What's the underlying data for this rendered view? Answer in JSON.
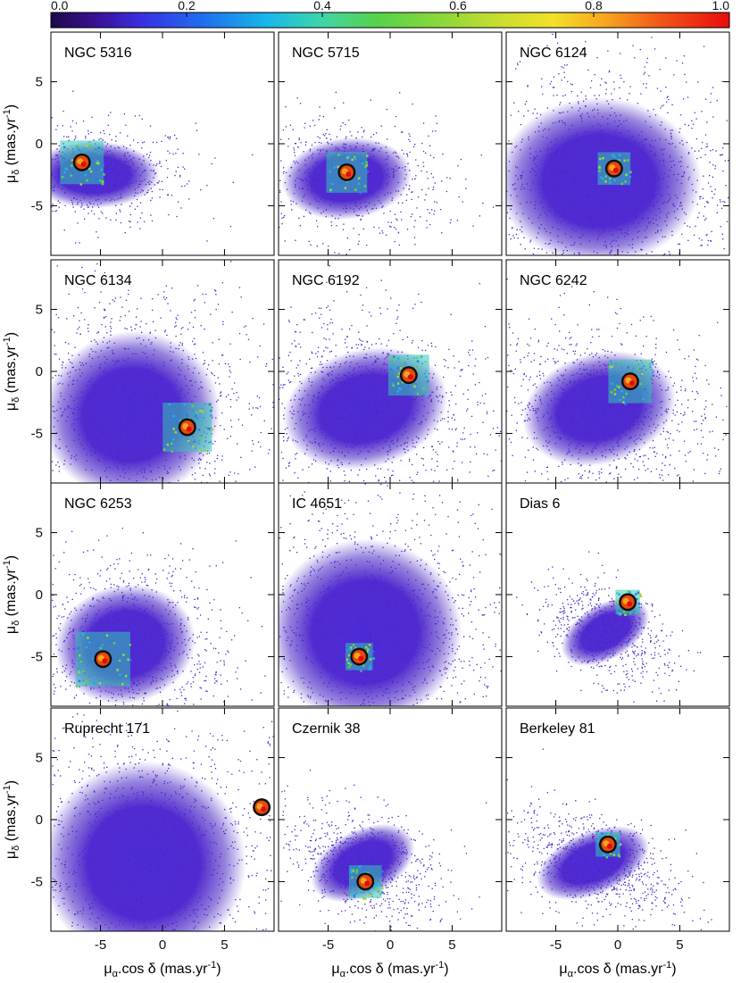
{
  "chart_data": {
    "type": "scatter",
    "description_units": "proper motion density plots",
    "colorbar": {
      "ticks": [
        "0.0",
        "0.2",
        "0.4",
        "0.6",
        "0.8",
        "1.0"
      ],
      "range": [
        0,
        1
      ],
      "colormap": "rainbow"
    },
    "xlabel": "μα.cos δ (mas.yr-1)",
    "ylabel": "μδ (mas.yr-1)",
    "xlabel_parts": {
      "sym": "μ",
      "sub": "α",
      "rest": ".cos δ (mas.yr",
      "sup": "-1",
      "close": ")"
    },
    "ylabel_parts": {
      "sym": "μ",
      "sub": "δ",
      "rest": " (mas.yr",
      "sup": "-1",
      "close": ")"
    },
    "xlim": [
      -9,
      9
    ],
    "ylim": [
      -9,
      9
    ],
    "xticks": [
      "-5",
      "0",
      "5"
    ],
    "yticks": [
      "5",
      "0",
      "-5"
    ],
    "panels": [
      {
        "name": "NGC 5316",
        "cluster": [
          -6.5,
          -1.5
        ],
        "field_center": [
          -5.5,
          -2.5
        ],
        "spread": [
          3.5,
          1.8
        ],
        "tilt": 0,
        "density": 1800,
        "box": 1.6
      },
      {
        "name": "NGC 5715",
        "cluster": [
          -3.5,
          -2.3
        ],
        "field_center": [
          -3.5,
          -2.8
        ],
        "spread": [
          3.5,
          2.2
        ],
        "tilt": 0.2,
        "density": 2000,
        "box": 1.5
      },
      {
        "name": "NGC 6124",
        "cluster": [
          -0.3,
          -2.0
        ],
        "field_center": [
          -1.5,
          -3.0
        ],
        "spread": [
          5.5,
          4.5
        ],
        "tilt": 0,
        "density": 4000,
        "box": 1.2
      },
      {
        "name": "NGC 6134",
        "cluster": [
          2.0,
          -4.5
        ],
        "field_center": [
          -2.5,
          -3.5
        ],
        "spread": [
          4.8,
          4.5
        ],
        "tilt": 0.5,
        "density": 3800,
        "box": 1.8
      },
      {
        "name": "NGC 6192",
        "cluster": [
          1.5,
          -0.3
        ],
        "field_center": [
          -2.0,
          -3.0
        ],
        "spread": [
          4.5,
          3.2
        ],
        "tilt": 0.5,
        "density": 3200,
        "box": 1.5
      },
      {
        "name": "NGC 6242",
        "cluster": [
          1.0,
          -0.8
        ],
        "field_center": [
          -1.5,
          -3.0
        ],
        "spread": [
          4.2,
          3.0
        ],
        "tilt": 0.55,
        "density": 3000,
        "box": 1.6
      },
      {
        "name": "NGC 6253",
        "cluster": [
          -4.8,
          -5.2
        ],
        "field_center": [
          -3.0,
          -4.0
        ],
        "spread": [
          3.8,
          3.2
        ],
        "tilt": 0.4,
        "density": 2800,
        "box": 2.0
      },
      {
        "name": "IC 4651",
        "cluster": [
          -2.5,
          -5.0
        ],
        "field_center": [
          -2.0,
          -3.0
        ],
        "spread": [
          5.2,
          5.0
        ],
        "tilt": 0.2,
        "density": 4000,
        "box": 1.0
      },
      {
        "name": "Dias 6",
        "cluster": [
          0.8,
          -0.6
        ],
        "field_center": [
          -1.0,
          -3.0
        ],
        "spread": [
          2.6,
          1.5
        ],
        "tilt": 1.0,
        "density": 1800,
        "box": 0.9
      },
      {
        "name": "Ruprecht 171",
        "cluster": [
          8.0,
          1.0
        ],
        "field_center": [
          -1.5,
          -3.5
        ],
        "spread": [
          5.5,
          5.5
        ],
        "tilt": 0.3,
        "density": 4500,
        "box": 0.0
      },
      {
        "name": "Czernik 38",
        "cluster": [
          -2.0,
          -5.0
        ],
        "field_center": [
          -2.2,
          -3.5
        ],
        "spread": [
          3.0,
          1.8
        ],
        "tilt": 0.9,
        "density": 2200,
        "box": 1.2
      },
      {
        "name": "Berkeley 81",
        "cluster": [
          -0.8,
          -2.0
        ],
        "field_center": [
          -2.0,
          -3.5
        ],
        "spread": [
          3.2,
          1.7
        ],
        "tilt": 0.75,
        "density": 2400,
        "box": 0.9
      }
    ]
  }
}
